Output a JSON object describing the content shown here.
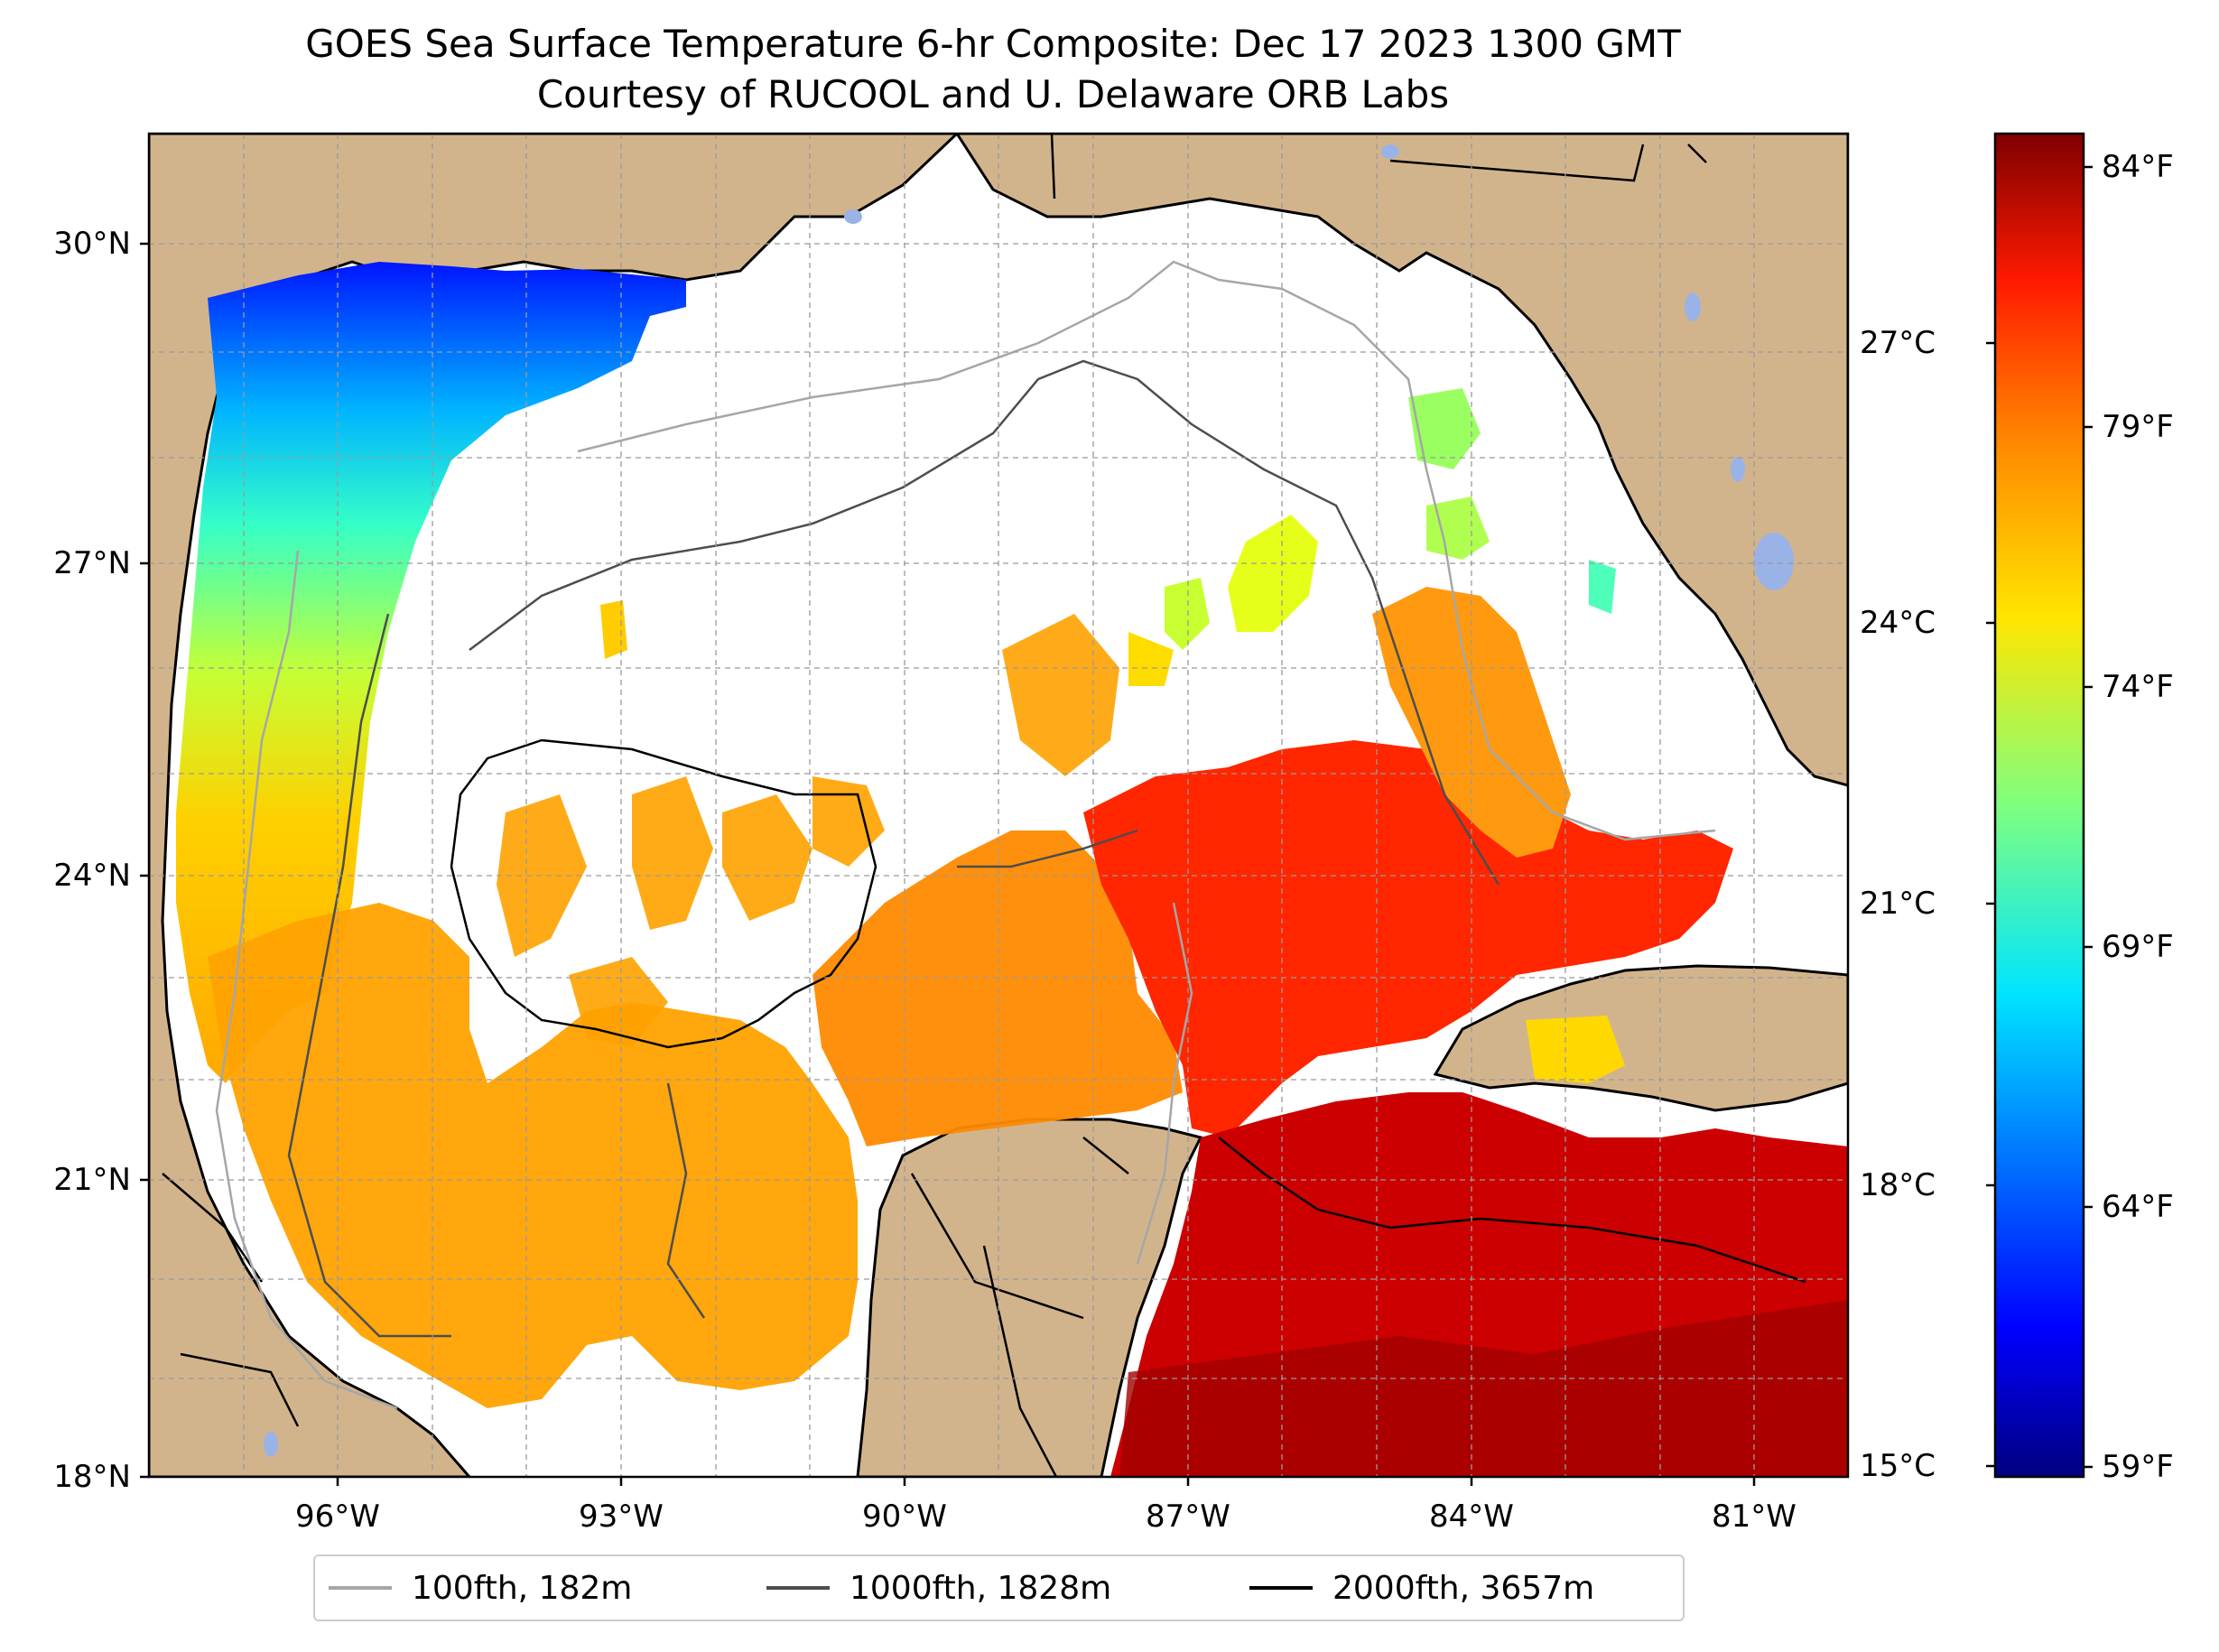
{
  "title": "GOES Sea Surface Temperature 6-hr Composite: Dec 17 2023 1300 GMT",
  "subtitle": "Courtesy of RUCOOL and U. Delaware ORB Labs",
  "lat_ticks": [
    "30°N",
    "27°N",
    "24°N",
    "21°N",
    "18°N"
  ],
  "lon_ticks": [
    "96°W",
    "93°W",
    "90°W",
    "87°W",
    "84°W",
    "81°W"
  ],
  "colorbar": {
    "fahrenheit_ticks": [
      "84°F",
      "79°F",
      "74°F",
      "69°F",
      "64°F",
      "59°F"
    ],
    "celsius_ticks": [
      "27°C",
      "24°C",
      "21°C",
      "18°C",
      "15°C"
    ],
    "colormap": "jet",
    "range_c": [
      15,
      29
    ]
  },
  "legend": [
    {
      "label": "100fth, 182m",
      "color": "#a6a6a6"
    },
    {
      "label": "1000fth, 1828m",
      "color": "#4d4d4d"
    },
    {
      "label": "2000fth, 3657m",
      "color": "#000000"
    }
  ],
  "colors": {
    "land": "#d2b48c",
    "lakes": "#99b3e6",
    "no_data": "#ffffff"
  }
}
